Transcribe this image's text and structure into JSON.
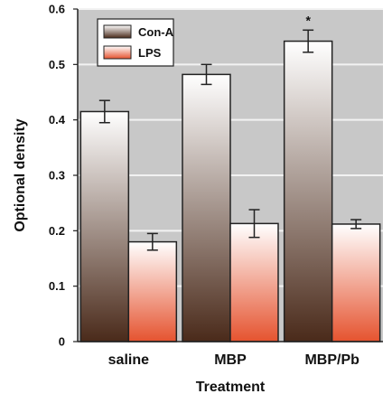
{
  "chart_data": {
    "type": "bar",
    "title": "",
    "xlabel": "Treatment",
    "ylabel": "Optional density",
    "categories": [
      "saline",
      "MBP",
      "MBP/Pb"
    ],
    "series": [
      {
        "name": "Con-A",
        "values": [
          0.415,
          0.482,
          0.542
        ],
        "errors": [
          0.02,
          0.018,
          0.02
        ],
        "color_top": "#ffffff",
        "color_bottom": "#4a2a1a"
      },
      {
        "name": "LPS",
        "values": [
          0.18,
          0.213,
          0.212
        ],
        "errors": [
          0.015,
          0.025,
          0.008
        ],
        "color_top": "#ffffff",
        "color_bottom": "#e5532f"
      }
    ],
    "ylim": [
      0,
      0.6
    ],
    "yticks": [
      "0",
      "0.1",
      "0.2",
      "0.3",
      "0.4",
      "0.5",
      "0.6"
    ],
    "grid": true,
    "legend_position": "top-left",
    "annotations": [
      {
        "text": "*",
        "category": "MBP/Pb",
        "series": "Con-A"
      }
    ],
    "colors": {
      "plot_background": "#c8c8c8",
      "grid": "#f2f2f2",
      "axis": "#222222",
      "bar_outline": "#222222"
    }
  }
}
